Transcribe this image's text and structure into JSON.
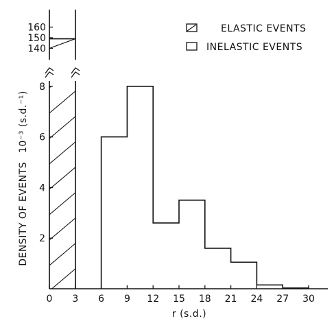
{
  "chart_data": {
    "type": "bar",
    "xlabel": "r (s.d.)",
    "ylabel": "DENSITY OF EVENTS",
    "ylabel_scale": "10⁻³ (s.d.⁻¹)",
    "x_ticks": [
      "0",
      "3",
      "6",
      "9",
      "12",
      "15",
      "18",
      "21",
      "24",
      "27",
      "30"
    ],
    "y_ticks_main": [
      "2",
      "4",
      "6",
      "8"
    ],
    "y_ticks_upper": [
      "140",
      "150",
      "160"
    ],
    "xlim": [
      0,
      33
    ],
    "ylim_main": [
      0,
      8
    ],
    "ylim_upper": [
      140,
      160
    ],
    "axis_break": true,
    "legend_position": "top-right",
    "series": [
      {
        "name": "ELASTIC EVENTS",
        "style": "hatched",
        "bins": [
          {
            "x0": 0,
            "x1": 3,
            "value": 149
          }
        ]
      },
      {
        "name": "INELASTIC EVENTS",
        "style": "open",
        "bins": [
          {
            "x0": 6,
            "x1": 9,
            "value": 6.0
          },
          {
            "x0": 9,
            "x1": 12,
            "value": 8.0
          },
          {
            "x0": 12,
            "x1": 15,
            "value": 2.6
          },
          {
            "x0": 15,
            "x1": 18,
            "value": 3.5
          },
          {
            "x0": 18,
            "x1": 21,
            "value": 1.6
          },
          {
            "x0": 21,
            "x1": 24,
            "value": 1.05
          },
          {
            "x0": 24,
            "x1": 27,
            "value": 0.15
          },
          {
            "x0": 27,
            "x1": 30,
            "value": 0.03
          }
        ]
      }
    ]
  }
}
